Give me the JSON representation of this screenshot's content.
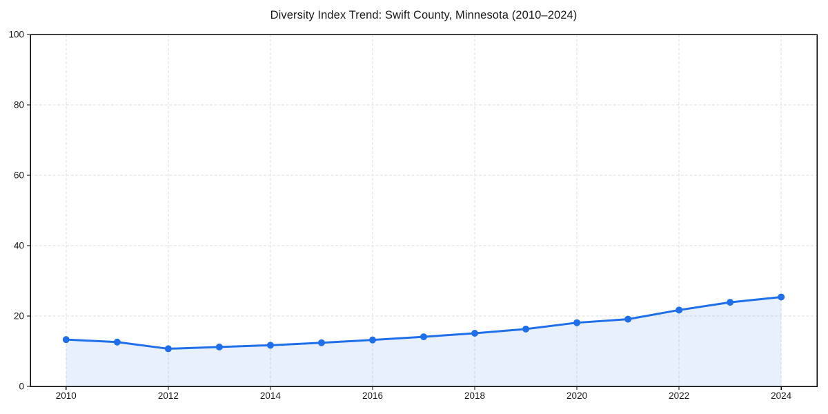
{
  "chart_data": {
    "type": "line",
    "title": "Diversity Index Trend: Swift County, Minnesota (2010–2024)",
    "x": [
      2010,
      2011,
      2012,
      2013,
      2014,
      2015,
      2016,
      2017,
      2018,
      2019,
      2020,
      2021,
      2022,
      2023,
      2024
    ],
    "series": [
      {
        "name": "Diversity Index",
        "values": [
          13.3,
          12.6,
          10.7,
          11.2,
          11.7,
          12.4,
          13.2,
          14.1,
          15.1,
          16.3,
          18.1,
          19.1,
          21.7,
          23.9,
          25.4
        ]
      }
    ],
    "xlabel": "",
    "ylabel": "",
    "xlim": [
      2009.3,
      2024.7
    ],
    "ylim": [
      0,
      100
    ],
    "xticks": [
      2010,
      2012,
      2014,
      2016,
      2018,
      2020,
      2022,
      2024
    ],
    "yticks": [
      0,
      20,
      40,
      60,
      80,
      100
    ],
    "grid": true,
    "grid_style": "dashed",
    "legend": false,
    "area_fill": true,
    "marker": "circle",
    "colors": {
      "line": "#1f6feb",
      "marker": "#1f6feb",
      "fill": "#1f6feb",
      "fill_opacity": 0.1,
      "grid": "#dedede",
      "spine": "#000000",
      "text": "#1a1a1a",
      "background": "#ffffff"
    }
  }
}
